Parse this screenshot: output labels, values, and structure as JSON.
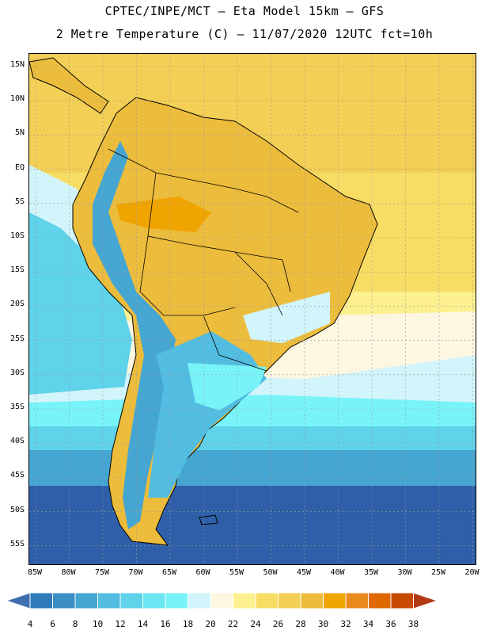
{
  "header": {
    "line1": "CPTEC/INPE/MCT –  Eta Model 15km – GFS",
    "line2": "2 Metre Temperature (C) – 11/07/2020 12UTC fct=10h"
  },
  "map": {
    "lat_labels": [
      "15N",
      "10N",
      "5N",
      "EQ",
      "5S",
      "10S",
      "15S",
      "20S",
      "25S",
      "30S",
      "35S",
      "40S",
      "45S",
      "50S",
      "55S"
    ],
    "lon_labels": [
      "85W",
      "80W",
      "75W",
      "70W",
      "65W",
      "60W",
      "55W",
      "50W",
      "45W",
      "40W",
      "35W",
      "30W",
      "25W",
      "20W"
    ]
  },
  "legend": {
    "labels": [
      "4",
      "6",
      "8",
      "10",
      "12",
      "14",
      "16",
      "18",
      "20",
      "22",
      "24",
      "26",
      "28",
      "30",
      "32",
      "34",
      "36",
      "38"
    ],
    "colors": [
      "#3f6fb0",
      "#2f7ab8",
      "#3b8fc4",
      "#45a6d2",
      "#52bde0",
      "#5ed3ea",
      "#69e6f2",
      "#78f4f9",
      "#d2f4fb",
      "#fdf6e1",
      "#fdf08f",
      "#f7dd63",
      "#f3cf55",
      "#ecbc3c",
      "#f0a400",
      "#eb8a1c",
      "#df6900",
      "#c84a00",
      "#b23b14"
    ]
  },
  "colors": {
    "ocean_warm": "#f3cf55",
    "ocean_cool": "#2e5fa8",
    "border": "#000000"
  }
}
